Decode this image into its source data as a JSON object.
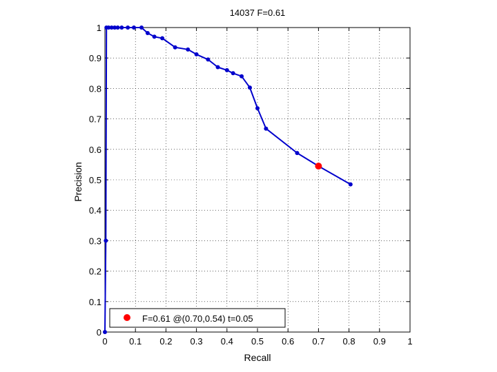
{
  "chart_data": {
    "type": "line",
    "title": "14037 F=0.61",
    "xlabel": "Recall",
    "ylabel": "Precision",
    "xlim": [
      0,
      1
    ],
    "ylim": [
      0,
      1
    ],
    "grid": true,
    "legend_position": "bottom-left",
    "x_ticks": [
      0,
      0.1,
      0.2,
      0.3,
      0.4,
      0.5,
      0.6,
      0.7,
      0.8,
      0.9,
      1
    ],
    "y_ticks": [
      0,
      0.1,
      0.2,
      0.3,
      0.4,
      0.5,
      0.6,
      0.7,
      0.8,
      0.9,
      1
    ],
    "x_tick_labels": [
      "0",
      "0.1",
      "0.2",
      "0.3",
      "0.4",
      "0.5",
      "0.6",
      "0.7",
      "0.8",
      "0.9",
      "1"
    ],
    "y_tick_labels": [
      "0",
      "0.1",
      "0.2",
      "0.3",
      "0.4",
      "0.5",
      "0.6",
      "0.7",
      "0.8",
      "0.9",
      "1"
    ],
    "series": [
      {
        "color": "#0000cc",
        "marker": "dot",
        "x": [
          0.0,
          0.003,
          0.005,
          0.012,
          0.022,
          0.032,
          0.042,
          0.055,
          0.075,
          0.095,
          0.12,
          0.14,
          0.162,
          0.188,
          0.23,
          0.272,
          0.3,
          0.338,
          0.37,
          0.4,
          0.42,
          0.448,
          0.475,
          0.5,
          0.528,
          0.63,
          0.7,
          0.805
        ],
        "y": [
          0.0,
          0.3,
          1.0,
          1.0,
          1.0,
          1.0,
          1.0,
          1.0,
          1.0,
          1.0,
          1.0,
          0.982,
          0.97,
          0.965,
          0.935,
          0.928,
          0.912,
          0.895,
          0.87,
          0.86,
          0.85,
          0.84,
          0.803,
          0.735,
          0.668,
          0.588,
          0.545,
          0.485
        ]
      }
    ],
    "highlight": {
      "x": 0.7,
      "y": 0.545,
      "color": "#ff0000",
      "label": "F=0.61 @(0.70,0.54) t=0.05"
    }
  }
}
